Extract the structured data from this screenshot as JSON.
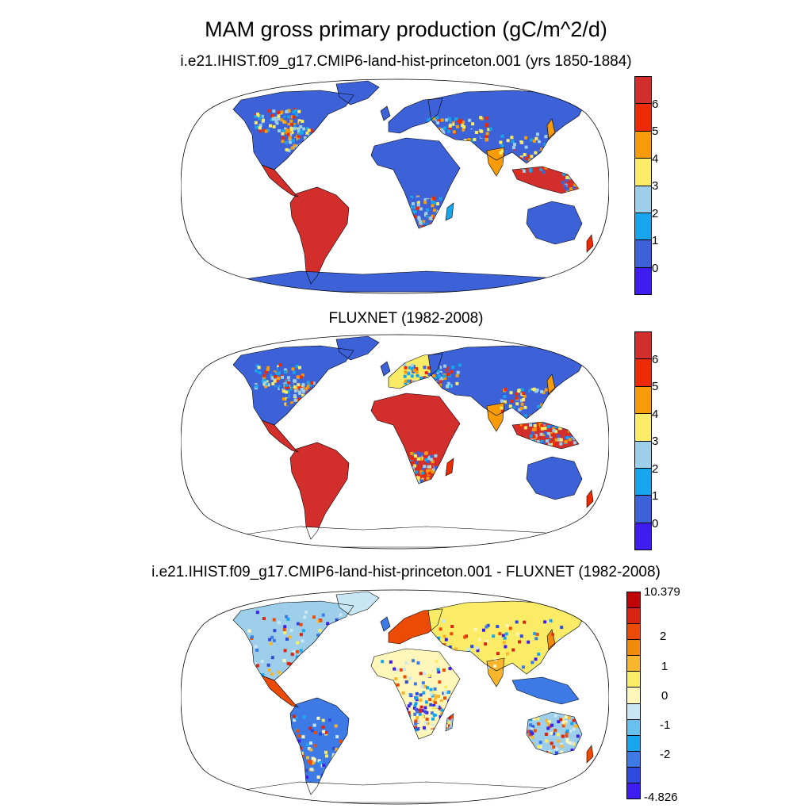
{
  "figure": {
    "title": "MAM gross primary production (gC/m^2/d)"
  },
  "panels": [
    {
      "id": "model",
      "title": "i.e21.IHIST.f09_g17.CMIP6-land-hist-princeton.001 (yrs 1850-1884)",
      "colorbar": {
        "colors": [
          "#3e1cf2",
          "#3d62d8",
          "#17a6ee",
          "#9dcfea",
          "#fbec67",
          "#f79b09",
          "#ec2b05",
          "#d22e2b"
        ],
        "tick_labels": [
          "0",
          "1",
          "2",
          "3",
          "4",
          "5",
          "6"
        ]
      }
    },
    {
      "id": "obs",
      "title": "FLUXNET (1982-2008)",
      "colorbar": {
        "colors": [
          "#3e1cf2",
          "#3d62d8",
          "#17a6ee",
          "#9dcfea",
          "#fbec67",
          "#f79b09",
          "#ec2b05",
          "#d22e2b"
        ],
        "tick_labels": [
          "0",
          "1",
          "2",
          "3",
          "4",
          "5",
          "6"
        ]
      }
    },
    {
      "id": "diff",
      "title": "i.e21.IHIST.f09_g17.CMIP6-land-hist-princeton.001 - FLUXNET (1982-2008)",
      "colorbar": {
        "colors": [
          "#3e1cf2",
          "#2e4bde",
          "#3d7ae5",
          "#17a6ee",
          "#68c0ee",
          "#c9e6f4",
          "#fff6b9",
          "#fbec67",
          "#f7b62c",
          "#f38b0a",
          "#ec4b05",
          "#d92411",
          "#bf0505"
        ],
        "tick_labels": [
          "10.379",
          "2",
          "1",
          "0",
          "-1",
          "-2",
          "-4.826"
        ]
      }
    }
  ],
  "map": {
    "projection": "Robinson",
    "season": "MAM",
    "variable": "gross primary production",
    "units": "gC/m^2/d"
  }
}
